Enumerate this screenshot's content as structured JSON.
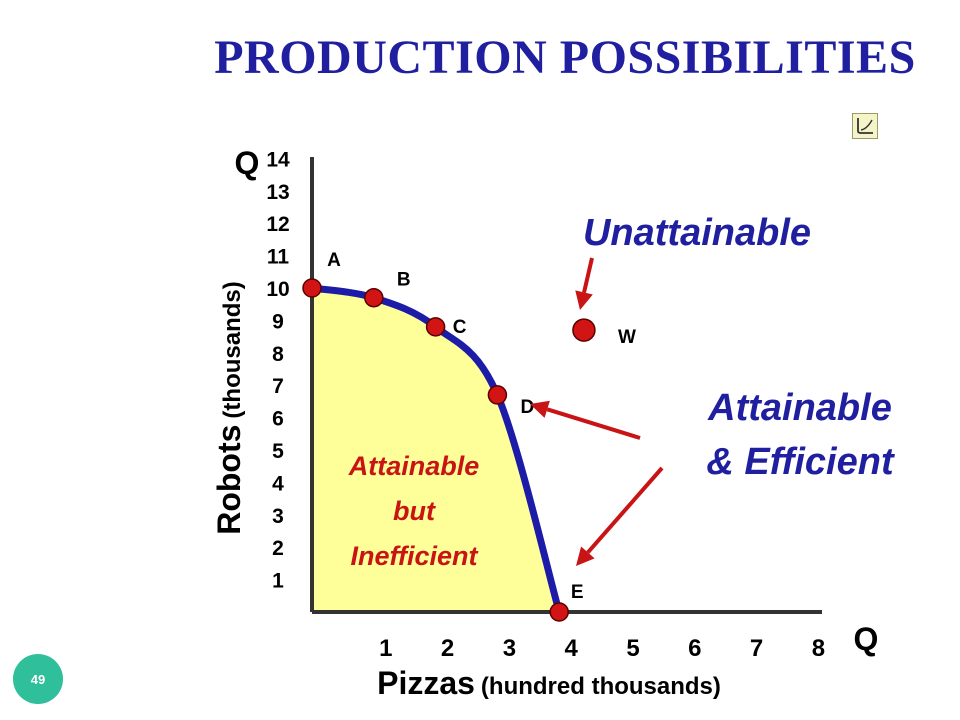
{
  "title": "PRODUCTION POSSIBILITIES",
  "slide_number": "49",
  "nav_icon": "curve-return-icon",
  "colors": {
    "title": "#1f1fa0",
    "curve": "#1c1ca8",
    "fill": "#ffff99",
    "point": "#d21414",
    "arrow": "#c81414",
    "region_text": "#c81414",
    "badge": "#2fbf9a"
  },
  "chart_data": {
    "type": "line",
    "title": "PRODUCTION POSSIBILITIES",
    "y_axis_letter": "Q",
    "x_axis_letter": "Q",
    "ylabel_main": "Robots",
    "ylabel_unit": "(thousands)",
    "xlabel_main": "Pizzas",
    "xlabel_unit": "(hundred thousands)",
    "x_ticks": [
      "1",
      "2",
      "3",
      "4",
      "5",
      "6",
      "7",
      "8"
    ],
    "y_ticks": [
      "14",
      "13",
      "12",
      "11",
      "10",
      "9",
      "8",
      "7",
      "6",
      "5",
      "4",
      "3",
      "2",
      "1"
    ],
    "xlim": [
      0,
      8
    ],
    "ylim": [
      0,
      14
    ],
    "points": [
      {
        "label": "A",
        "x": 0,
        "y": 10
      },
      {
        "label": "B",
        "x": 1,
        "y": 9.7
      },
      {
        "label": "C",
        "x": 2,
        "y": 8.8
      },
      {
        "label": "D",
        "x": 3,
        "y": 6.7
      },
      {
        "label": "E",
        "x": 4,
        "y": 0
      }
    ],
    "point_w": {
      "label": "W",
      "x": 4.4,
      "y": 8.7
    },
    "annotations": {
      "unattainable": "Unattainable",
      "efficient_line1": "Attainable",
      "efficient_line2": "& Efficient",
      "inefficient_line1": "Attainable",
      "inefficient_line2": "but",
      "inefficient_line3": "Inefficient"
    }
  }
}
